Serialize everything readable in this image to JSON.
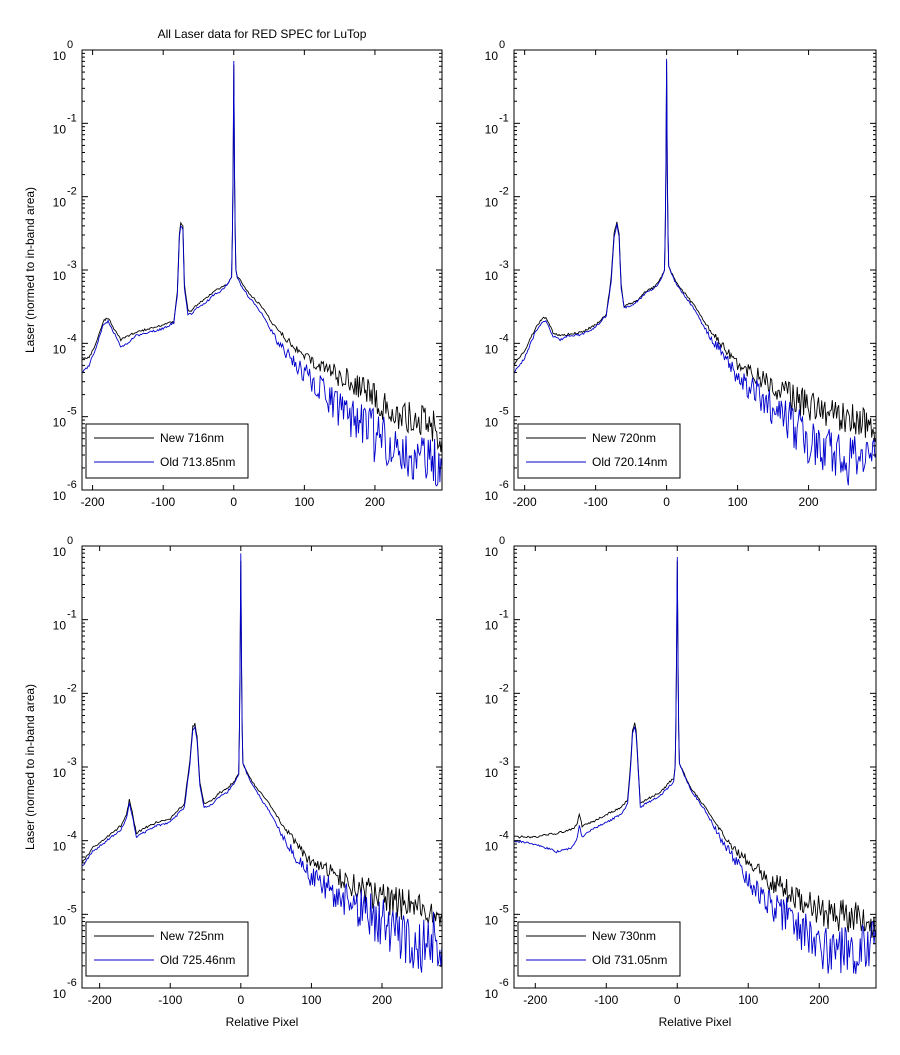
{
  "figure": {
    "title": "All Laser data for RED SPEC for LuTop",
    "ylabel": "Laser (normed to in-band area)",
    "xlabel": "Relative Pixel"
  },
  "colors": {
    "new": "#000000",
    "old": "#0000cc",
    "axes": "#000000",
    "background": "#ffffff"
  },
  "chart_data": [
    {
      "type": "line",
      "title": "All Laser data for RED SPEC for LuTop",
      "xlabel": "",
      "ylabel": "Laser (normed to in-band area)",
      "xlim": [
        -215,
        295
      ],
      "ylim_exponent": [
        -6,
        0
      ],
      "yscale": "log",
      "xticks": [
        -200,
        -100,
        0,
        100,
        200
      ],
      "yticks": [
        "10^0",
        "10^-1",
        "10^-2",
        "10^-3",
        "10^-4",
        "10^-5",
        "10^-6"
      ],
      "legend_location": "bottom-left",
      "series": [
        {
          "name": "New 716nm",
          "color": "#000000",
          "x": [
            -215,
            -205,
            -195,
            -185,
            -178,
            -170,
            -160,
            -150,
            -140,
            -120,
            -100,
            -85,
            -80,
            -77,
            -75,
            -72,
            -70,
            -65,
            -60,
            -50,
            -40,
            -30,
            -20,
            -10,
            -3,
            -2,
            -1,
            0,
            1,
            2,
            3,
            5,
            10,
            20,
            40,
            60,
            80,
            100,
            130,
            160,
            190,
            220,
            250,
            280,
            295
          ],
          "log10y": [
            -4.2,
            -4.2,
            -4.0,
            -3.7,
            -3.65,
            -3.8,
            -3.95,
            -3.9,
            -3.85,
            -3.8,
            -3.75,
            -3.7,
            -3.3,
            -2.5,
            -2.35,
            -2.4,
            -3.2,
            -3.55,
            -3.55,
            -3.45,
            -3.4,
            -3.3,
            -3.25,
            -3.2,
            -3.1,
            -2.5,
            -1.7,
            -0.2,
            -1.7,
            -2.5,
            -3.0,
            -3.1,
            -3.15,
            -3.3,
            -3.5,
            -3.8,
            -4.0,
            -4.2,
            -4.35,
            -4.5,
            -4.7,
            -4.9,
            -5.0,
            -5.1,
            -5.3
          ]
        },
        {
          "name": "Old 713.85nm",
          "color": "#0000cc",
          "x": [
            -215,
            -205,
            -195,
            -185,
            -178,
            -170,
            -160,
            -150,
            -140,
            -120,
            -100,
            -85,
            -80,
            -77,
            -75,
            -72,
            -70,
            -65,
            -60,
            -50,
            -40,
            -30,
            -20,
            -10,
            -3,
            -2,
            -1,
            0,
            1,
            2,
            3,
            5,
            10,
            20,
            40,
            60,
            80,
            100,
            130,
            160,
            190,
            220,
            250,
            280,
            295
          ],
          "log10y": [
            -4.4,
            -4.3,
            -4.05,
            -3.75,
            -3.7,
            -3.85,
            -4.05,
            -4.0,
            -3.9,
            -3.85,
            -3.8,
            -3.72,
            -3.35,
            -2.55,
            -2.4,
            -2.45,
            -3.25,
            -3.6,
            -3.6,
            -3.5,
            -3.45,
            -3.35,
            -3.3,
            -3.2,
            -3.1,
            -2.5,
            -1.6,
            -0.15,
            -1.6,
            -2.5,
            -3.0,
            -3.1,
            -3.2,
            -3.35,
            -3.6,
            -3.95,
            -4.2,
            -4.4,
            -4.7,
            -5.0,
            -5.2,
            -5.4,
            -5.5,
            -5.6,
            -5.7
          ]
        }
      ]
    },
    {
      "type": "line",
      "title": "",
      "xlabel": "",
      "ylabel": "",
      "xlim": [
        -215,
        295
      ],
      "ylim_exponent": [
        -6,
        0
      ],
      "yscale": "log",
      "xticks": [
        -200,
        -100,
        0,
        100,
        200
      ],
      "yticks": [
        "10^0",
        "10^-1",
        "10^-2",
        "10^-3",
        "10^-4",
        "10^-5",
        "10^-6"
      ],
      "legend_location": "bottom-left",
      "series": [
        {
          "name": "New 720nm",
          "color": "#000000",
          "x": [
            -215,
            -200,
            -185,
            -175,
            -170,
            -160,
            -150,
            -140,
            -120,
            -100,
            -85,
            -78,
            -74,
            -70,
            -67,
            -64,
            -60,
            -50,
            -40,
            -30,
            -20,
            -10,
            -3,
            -2,
            -1,
            0,
            1,
            2,
            3,
            5,
            10,
            20,
            40,
            60,
            80,
            100,
            130,
            160,
            190,
            220,
            250,
            280,
            295
          ],
          "log10y": [
            -4.3,
            -4.1,
            -3.8,
            -3.65,
            -3.65,
            -3.85,
            -3.9,
            -3.88,
            -3.85,
            -3.75,
            -3.6,
            -3.1,
            -2.5,
            -2.35,
            -2.5,
            -3.2,
            -3.5,
            -3.45,
            -3.4,
            -3.3,
            -3.25,
            -3.15,
            -3.0,
            -2.5,
            -1.7,
            -0.15,
            -1.7,
            -2.5,
            -2.95,
            -3.0,
            -3.1,
            -3.25,
            -3.5,
            -3.8,
            -4.05,
            -4.3,
            -4.45,
            -4.65,
            -4.8,
            -4.95,
            -5.0,
            -5.1,
            -5.3
          ]
        },
        {
          "name": "Old 720.14nm",
          "color": "#0000cc",
          "x": [
            -215,
            -200,
            -185,
            -175,
            -170,
            -160,
            -150,
            -140,
            -120,
            -100,
            -85,
            -78,
            -74,
            -70,
            -67,
            -64,
            -60,
            -50,
            -40,
            -30,
            -20,
            -10,
            -3,
            -2,
            -1,
            0,
            1,
            2,
            3,
            5,
            10,
            20,
            40,
            60,
            80,
            100,
            130,
            160,
            190,
            220,
            250,
            280,
            295
          ],
          "log10y": [
            -4.4,
            -4.2,
            -3.85,
            -3.7,
            -3.7,
            -3.9,
            -3.95,
            -3.9,
            -3.88,
            -3.78,
            -3.62,
            -3.15,
            -2.55,
            -2.38,
            -2.55,
            -3.25,
            -3.52,
            -3.48,
            -3.42,
            -3.32,
            -3.27,
            -3.17,
            -3.0,
            -2.5,
            -1.6,
            -0.12,
            -1.6,
            -2.5,
            -2.95,
            -3.0,
            -3.12,
            -3.28,
            -3.55,
            -3.9,
            -4.15,
            -4.45,
            -4.7,
            -5.0,
            -5.2,
            -5.45,
            -5.6,
            -5.5,
            -5.5
          ]
        }
      ]
    },
    {
      "type": "line",
      "title": "",
      "xlabel": "Relative Pixel",
      "ylabel": "Laser (normed to in-band area)",
      "xlim": [
        -225,
        285
      ],
      "ylim_exponent": [
        -6,
        0
      ],
      "yscale": "log",
      "xticks": [
        -200,
        -100,
        0,
        100,
        200
      ],
      "yticks": [
        "10^0",
        "10^-1",
        "10^-2",
        "10^-3",
        "10^-4",
        "10^-5",
        "10^-6"
      ],
      "legend_location": "bottom-left",
      "series": [
        {
          "name": "New 725nm",
          "color": "#000000",
          "x": [
            -225,
            -210,
            -190,
            -170,
            -162,
            -158,
            -154,
            -148,
            -140,
            -120,
            -100,
            -80,
            -72,
            -68,
            -65,
            -62,
            -58,
            -52,
            -40,
            -30,
            -20,
            -10,
            -3,
            -2,
            -1,
            0,
            1,
            2,
            3,
            5,
            10,
            20,
            40,
            60,
            80,
            100,
            130,
            160,
            190,
            220,
            250,
            270,
            285
          ],
          "log10y": [
            -4.3,
            -4.1,
            -3.95,
            -3.8,
            -3.65,
            -3.45,
            -3.6,
            -3.9,
            -3.85,
            -3.75,
            -3.7,
            -3.5,
            -2.9,
            -2.45,
            -2.42,
            -2.6,
            -3.2,
            -3.5,
            -3.45,
            -3.35,
            -3.3,
            -3.2,
            -3.1,
            -2.5,
            -1.6,
            -0.2,
            -1.6,
            -2.5,
            -2.95,
            -3.0,
            -3.1,
            -3.25,
            -3.5,
            -3.8,
            -4.05,
            -4.3,
            -4.45,
            -4.6,
            -4.75,
            -4.85,
            -4.9,
            -4.95,
            -5.0
          ]
        },
        {
          "name": "Old 725.46nm",
          "color": "#0000cc",
          "x": [
            -225,
            -210,
            -190,
            -170,
            -162,
            -158,
            -154,
            -148,
            -140,
            -120,
            -100,
            -80,
            -72,
            -68,
            -65,
            -62,
            -58,
            -52,
            -40,
            -30,
            -20,
            -10,
            -3,
            -2,
            -1,
            0,
            1,
            2,
            3,
            5,
            10,
            20,
            40,
            60,
            80,
            100,
            130,
            160,
            190,
            220,
            250,
            270,
            285
          ],
          "log10y": [
            -4.35,
            -4.15,
            -4.0,
            -3.85,
            -3.7,
            -3.5,
            -3.65,
            -3.95,
            -3.9,
            -3.8,
            -3.75,
            -3.55,
            -2.95,
            -2.5,
            -2.45,
            -2.65,
            -3.25,
            -3.55,
            -3.5,
            -3.4,
            -3.35,
            -3.22,
            -3.1,
            -2.5,
            -1.5,
            -0.1,
            -1.5,
            -2.5,
            -2.95,
            -3.0,
            -3.12,
            -3.3,
            -3.6,
            -3.95,
            -4.25,
            -4.5,
            -4.7,
            -4.85,
            -5.05,
            -5.3,
            -5.5,
            -5.3,
            -5.4
          ]
        }
      ]
    },
    {
      "type": "line",
      "title": "",
      "xlabel": "Relative Pixel",
      "ylabel": "",
      "xlim": [
        -230,
        280
      ],
      "ylim_exponent": [
        -6,
        0
      ],
      "yscale": "log",
      "xticks": [
        -200,
        -100,
        0,
        100,
        200
      ],
      "yticks": [
        "10^0",
        "10^-1",
        "10^-2",
        "10^-3",
        "10^-4",
        "10^-5",
        "10^-6"
      ],
      "legend_location": "bottom-left",
      "series": [
        {
          "name": "New 730nm",
          "color": "#000000",
          "x": [
            -230,
            -200,
            -170,
            -150,
            -142,
            -138,
            -134,
            -120,
            -100,
            -80,
            -70,
            -66,
            -63,
            -60,
            -58,
            -55,
            -52,
            -45,
            -35,
            -25,
            -15,
            -5,
            -3,
            -2,
            -1,
            0,
            1,
            2,
            3,
            5,
            10,
            20,
            40,
            60,
            80,
            100,
            130,
            160,
            190,
            220,
            250,
            270,
            280
          ],
          "log10y": [
            -3.95,
            -3.95,
            -3.9,
            -3.85,
            -3.8,
            -3.65,
            -3.8,
            -3.75,
            -3.65,
            -3.55,
            -3.45,
            -3.0,
            -2.5,
            -2.4,
            -2.5,
            -3.0,
            -3.5,
            -3.45,
            -3.4,
            -3.35,
            -3.25,
            -3.15,
            -3.0,
            -2.5,
            -1.6,
            -0.2,
            -1.6,
            -2.5,
            -2.95,
            -3.0,
            -3.1,
            -3.3,
            -3.55,
            -3.85,
            -4.1,
            -4.3,
            -4.55,
            -4.7,
            -4.9,
            -5.0,
            -5.05,
            -5.1,
            -5.2
          ]
        },
        {
          "name": "Old 731.05nm",
          "color": "#0000cc",
          "x": [
            -230,
            -200,
            -170,
            -150,
            -142,
            -138,
            -134,
            -120,
            -100,
            -80,
            -70,
            -66,
            -63,
            -60,
            -58,
            -55,
            -52,
            -45,
            -35,
            -25,
            -15,
            -5,
            -3,
            -2,
            -1,
            0,
            1,
            2,
            3,
            5,
            10,
            20,
            40,
            60,
            80,
            100,
            130,
            160,
            190,
            220,
            250,
            270,
            280
          ],
          "log10y": [
            -4.0,
            -4.05,
            -4.15,
            -4.1,
            -4.0,
            -3.8,
            -3.95,
            -3.85,
            -3.75,
            -3.65,
            -3.5,
            -3.05,
            -2.55,
            -2.45,
            -2.55,
            -3.05,
            -3.55,
            -3.5,
            -3.45,
            -3.4,
            -3.3,
            -3.2,
            -3.0,
            -2.5,
            -1.5,
            -0.15,
            -1.5,
            -2.5,
            -2.95,
            -3.0,
            -3.12,
            -3.32,
            -3.6,
            -3.95,
            -4.25,
            -4.55,
            -4.85,
            -5.05,
            -5.3,
            -5.5,
            -5.55,
            -5.4,
            -5.3
          ]
        }
      ]
    }
  ]
}
